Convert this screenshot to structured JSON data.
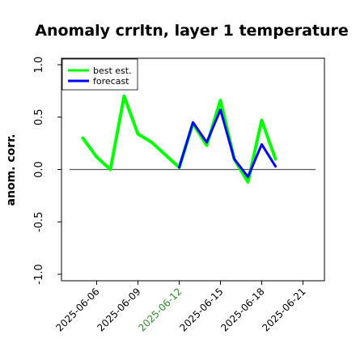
{
  "chart_data": {
    "type": "line",
    "title": "Anomaly crrltn, layer 1 temperature",
    "ylabel": "anom. corr.",
    "xlabel": "",
    "ylim": [
      -1.0,
      1.0
    ],
    "yticks": [
      "-1.0",
      "-0.5",
      "0.0",
      "0.5",
      "1.0"
    ],
    "xticks": [
      {
        "label": "2025-06-06",
        "color": "#000000"
      },
      {
        "label": "2025-06-09",
        "color": "#000000"
      },
      {
        "label": "2025-06-12",
        "color": "#2e8b2e"
      },
      {
        "label": "2025-06-15",
        "color": "#000000"
      },
      {
        "label": "2025-06-18",
        "color": "#000000"
      },
      {
        "label": "2025-06-21",
        "color": "#000000"
      }
    ],
    "reference_line": 0.0,
    "legend_position": "top-left",
    "series": [
      {
        "name": "best est.",
        "color": "#00ff00",
        "x": [
          "2025-06-05",
          "2025-06-06",
          "2025-06-07",
          "2025-06-08",
          "2025-06-09",
          "2025-06-10",
          "2025-06-12",
          "2025-06-13",
          "2025-06-14",
          "2025-06-15",
          "2025-06-16",
          "2025-06-17",
          "2025-06-18",
          "2025-06-19"
        ],
        "values": [
          0.3,
          0.12,
          0.0,
          0.7,
          0.34,
          0.26,
          0.02,
          0.44,
          0.23,
          0.66,
          0.1,
          -0.12,
          0.47,
          0.1
        ]
      },
      {
        "name": "forecast",
        "color": "#0000ff",
        "x": [
          "2025-06-12",
          "2025-06-13",
          "2025-06-14",
          "2025-06-15",
          "2025-06-16",
          "2025-06-17",
          "2025-06-18",
          "2025-06-19"
        ],
        "values": [
          0.02,
          0.45,
          0.26,
          0.57,
          0.1,
          -0.07,
          0.24,
          0.03
        ]
      }
    ]
  }
}
